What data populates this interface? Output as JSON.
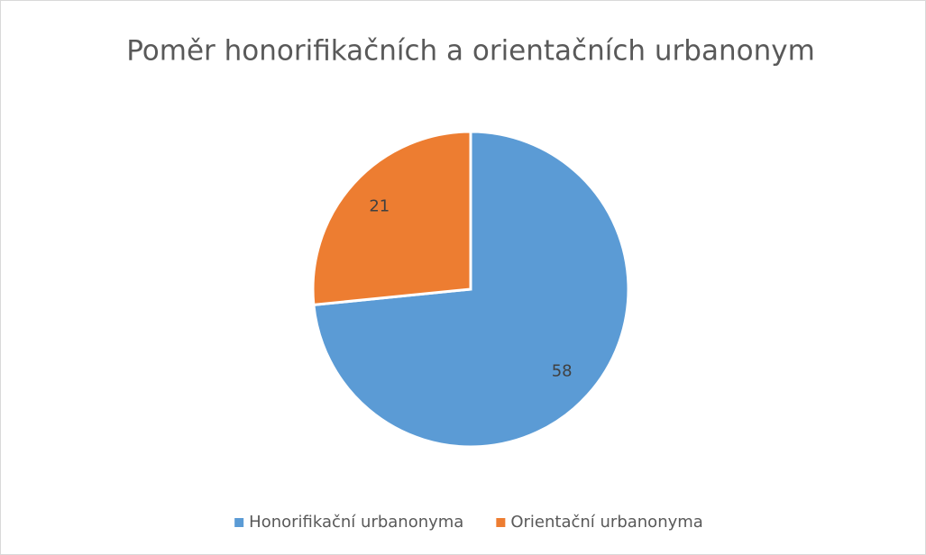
{
  "chart_data": {
    "type": "pie",
    "title": "Poměr honorifikačních a orientačních urbanonym",
    "categories": [
      "Honorifikační urbanonyma",
      "Orientační urbanonyma"
    ],
    "values": [
      58,
      21
    ],
    "colors": [
      "#5b9bd5",
      "#ed7d31"
    ],
    "legend": "bottom"
  }
}
